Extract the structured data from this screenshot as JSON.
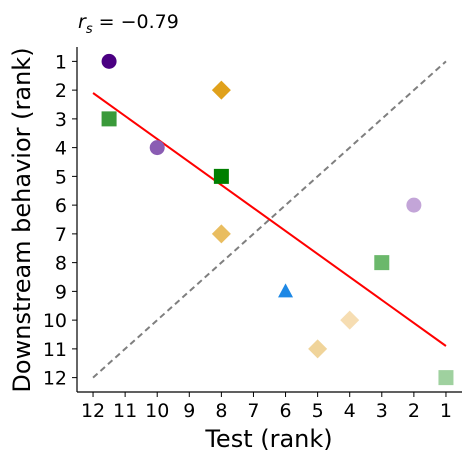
{
  "chart_data": {
    "type": "scatter",
    "title": "r_s = −0.79",
    "title_parts": {
      "main": "r",
      "sub": "s",
      "rest": " = −0.79"
    },
    "xlabel": "Test (rank)",
    "ylabel": "Downstream behavior (rank)",
    "x_ticks": [
      12,
      11,
      10,
      9,
      8,
      7,
      6,
      5,
      4,
      3,
      2,
      1
    ],
    "y_ticks": [
      1,
      2,
      3,
      4,
      5,
      6,
      7,
      8,
      9,
      10,
      11,
      12
    ],
    "xlim": [
      12.5,
      0.5
    ],
    "ylim": [
      12.5,
      0.5
    ],
    "x_axis_reversed": true,
    "y_axis_reversed": true,
    "grid": false,
    "points": [
      {
        "x": 11.5,
        "y": 1,
        "marker": "circle",
        "color": "#4b0082"
      },
      {
        "x": 8,
        "y": 2,
        "marker": "diamond",
        "color": "#e0a11b"
      },
      {
        "x": 11.5,
        "y": 3,
        "marker": "square",
        "color": "#3a9a3a"
      },
      {
        "x": 10,
        "y": 4,
        "marker": "circle",
        "color": "#8a5cb3"
      },
      {
        "x": 8,
        "y": 5,
        "marker": "square",
        "color": "#007f00"
      },
      {
        "x": 2,
        "y": 6,
        "marker": "circle",
        "color": "#c3a5d8"
      },
      {
        "x": 8,
        "y": 7,
        "marker": "diamond",
        "color": "#e9bd60"
      },
      {
        "x": 3,
        "y": 8,
        "marker": "square",
        "color": "#6bb86b"
      },
      {
        "x": 6,
        "y": 9,
        "marker": "triangle",
        "color": "#1e88e5"
      },
      {
        "x": 4,
        "y": 10,
        "marker": "diamond",
        "color": "#f6ddb2"
      },
      {
        "x": 5,
        "y": 11,
        "marker": "diamond",
        "color": "#f0d49a"
      },
      {
        "x": 1,
        "y": 12,
        "marker": "square",
        "color": "#9fd19f"
      }
    ],
    "fit_line": {
      "x": [
        12,
        1
      ],
      "y": [
        2.1,
        10.9
      ],
      "color": "#ff0000",
      "style": "solid"
    },
    "identity_line": {
      "x": [
        12,
        1
      ],
      "y": [
        12,
        1
      ],
      "color": "#7f7f7f",
      "style": "dashed"
    }
  }
}
